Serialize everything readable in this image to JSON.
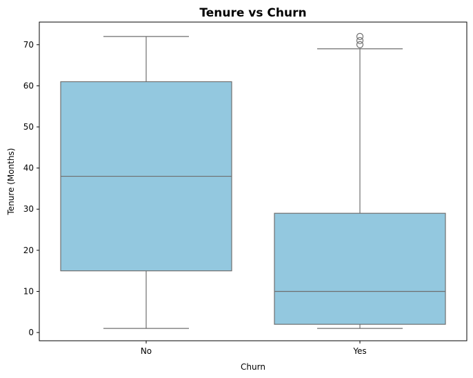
{
  "chart_data": {
    "type": "box",
    "title": "Tenure vs Churn",
    "xlabel": "Churn",
    "ylabel": "Tenure (Months)",
    "categories": [
      "No",
      "Yes"
    ],
    "ylim": [
      -2,
      75.5
    ],
    "yticks": [
      0,
      10,
      20,
      30,
      40,
      50,
      60,
      70
    ],
    "grid": false,
    "box_color": "#93c8df",
    "line_color": "#6e6e6e",
    "boxes": [
      {
        "category": "No",
        "whisker_low": 1,
        "q1": 15,
        "median": 38,
        "q3": 61,
        "whisker_high": 72,
        "outliers": []
      },
      {
        "category": "Yes",
        "whisker_low": 1,
        "q1": 2,
        "median": 10,
        "q3": 29,
        "whisker_high": 69,
        "outliers": [
          70,
          71,
          72
        ]
      }
    ]
  }
}
